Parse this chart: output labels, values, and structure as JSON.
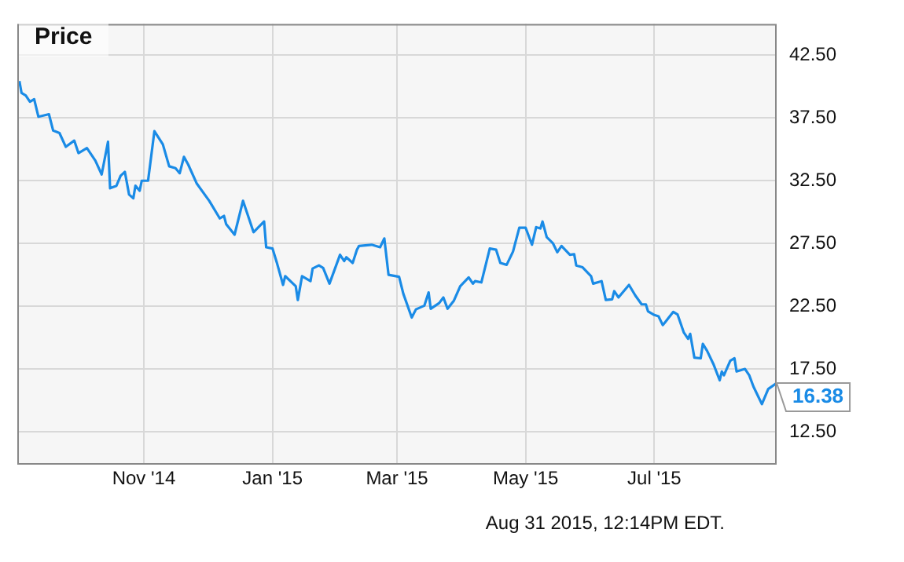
{
  "chart_data": {
    "type": "line",
    "title": "Price",
    "x": [
      "2014-09-03",
      "2014-09-04",
      "2014-09-06",
      "2014-09-08",
      "2014-09-10",
      "2014-09-12",
      "2014-09-17",
      "2014-09-19",
      "2014-09-22",
      "2014-09-25",
      "2014-09-29",
      "2014-10-01",
      "2014-10-05",
      "2014-10-09",
      "2014-10-12",
      "2014-10-15",
      "2014-10-16",
      "2014-10-19",
      "2014-10-21",
      "2014-10-23",
      "2014-10-25",
      "2014-10-27",
      "2014-10-28",
      "2014-10-30",
      "2014-10-31",
      "2014-11-03",
      "2014-11-06",
      "2014-11-10",
      "2014-11-13",
      "2014-11-16",
      "2014-11-18",
      "2014-11-20",
      "2014-11-22",
      "2014-11-26",
      "2014-12-02",
      "2014-12-07",
      "2014-12-09",
      "2014-12-10",
      "2014-12-14",
      "2014-12-18",
      "2014-12-23",
      "2014-12-28",
      "2014-12-29",
      "2015-01-01",
      "2015-01-03",
      "2015-01-06",
      "2015-01-07",
      "2015-01-12",
      "2015-01-13",
      "2015-01-15",
      "2015-01-19",
      "2015-01-20",
      "2015-01-23",
      "2015-01-25",
      "2015-01-28",
      "2015-02-02",
      "2015-02-04",
      "2015-02-05",
      "2015-02-08",
      "2015-02-10",
      "2015-02-11",
      "2015-02-17",
      "2015-02-21",
      "2015-02-23",
      "2015-02-25",
      "2015-03-02",
      "2015-03-04",
      "2015-03-08",
      "2015-03-10",
      "2015-03-14",
      "2015-03-16",
      "2015-03-17",
      "2015-03-21",
      "2015-03-23",
      "2015-03-25",
      "2015-03-28",
      "2015-03-31",
      "2015-04-04",
      "2015-04-06",
      "2015-04-07",
      "2015-04-10",
      "2015-04-14",
      "2015-04-17",
      "2015-04-19",
      "2015-04-22",
      "2015-04-25",
      "2015-04-28",
      "2015-05-01",
      "2015-05-04",
      "2015-05-06",
      "2015-05-08",
      "2015-05-09",
      "2015-05-11",
      "2015-05-14",
      "2015-05-16",
      "2015-05-18",
      "2015-05-22",
      "2015-05-24",
      "2015-05-25",
      "2015-05-28",
      "2015-06-01",
      "2015-06-02",
      "2015-06-06",
      "2015-06-08",
      "2015-06-11",
      "2015-06-12",
      "2015-06-14",
      "2015-06-19",
      "2015-06-22",
      "2015-06-25",
      "2015-06-27",
      "2015-06-28",
      "2015-07-01",
      "2015-07-03",
      "2015-07-05",
      "2015-07-06",
      "2015-07-10",
      "2015-07-12",
      "2015-07-15",
      "2015-07-17",
      "2015-07-18",
      "2015-07-20",
      "2015-07-23",
      "2015-07-24",
      "2015-07-26",
      "2015-07-29",
      "2015-08-01",
      "2015-08-02",
      "2015-08-03",
      "2015-08-06",
      "2015-08-08",
      "2015-08-09",
      "2015-08-13",
      "2015-08-15",
      "2015-08-17",
      "2015-08-21",
      "2015-08-24",
      "2015-08-28"
    ],
    "values": [
      40.44,
      39.5,
      39.3,
      38.8,
      39.0,
      37.6,
      37.8,
      36.5,
      36.3,
      35.2,
      35.7,
      34.7,
      35.1,
      34.1,
      33.0,
      35.6,
      31.9,
      32.1,
      32.9,
      33.2,
      31.4,
      31.1,
      32.1,
      31.7,
      32.5,
      32.5,
      36.45,
      35.4,
      33.65,
      33.5,
      33.1,
      34.4,
      33.8,
      32.3,
      30.9,
      29.5,
      29.7,
      29.05,
      28.2,
      30.9,
      28.4,
      29.25,
      27.2,
      27.1,
      26.0,
      24.2,
      24.9,
      24.1,
      23.0,
      24.9,
      24.5,
      25.5,
      25.75,
      25.55,
      24.3,
      26.6,
      26.1,
      26.4,
      25.95,
      27.0,
      27.3,
      27.4,
      27.2,
      27.9,
      25.0,
      24.85,
      23.5,
      21.6,
      22.25,
      22.55,
      23.6,
      22.3,
      22.75,
      23.2,
      22.3,
      22.95,
      24.1,
      24.8,
      24.3,
      24.5,
      24.4,
      27.1,
      27.0,
      25.95,
      25.8,
      26.85,
      28.75,
      28.75,
      27.4,
      28.8,
      28.7,
      29.25,
      28.0,
      27.5,
      26.8,
      27.3,
      26.6,
      26.65,
      25.75,
      25.6,
      24.9,
      24.3,
      24.5,
      23.0,
      23.05,
      23.7,
      23.2,
      24.2,
      23.35,
      22.65,
      22.65,
      22.1,
      21.8,
      21.7,
      21.0,
      21.2,
      22.05,
      21.85,
      20.4,
      19.9,
      20.3,
      18.4,
      18.35,
      19.5,
      18.95,
      17.9,
      16.6,
      17.3,
      17.0,
      18.15,
      18.35,
      17.3,
      17.5,
      17.0,
      16.1,
      14.7,
      15.9,
      16.38
    ],
    "value_labels": [
      null,
      null,
      null,
      null,
      null,
      null,
      null,
      null,
      null,
      null,
      null,
      null,
      null,
      null,
      null,
      null,
      null,
      null,
      null,
      null,
      null,
      null,
      null,
      null,
      null,
      null,
      null,
      null,
      null,
      null,
      null,
      null,
      null,
      null,
      null,
      null,
      null,
      null,
      null,
      null,
      null,
      null,
      null,
      null,
      null,
      null,
      null,
      null,
      null,
      null,
      null,
      null,
      null,
      null,
      null,
      null,
      null,
      null,
      null,
      null,
      null,
      null,
      null,
      null,
      null,
      null,
      null,
      null,
      null,
      null,
      null,
      null,
      null,
      null,
      null,
      null,
      null,
      null,
      null,
      null,
      null,
      null,
      null,
      null,
      null,
      null,
      null,
      null,
      null,
      null,
      null,
      null,
      null,
      null,
      null,
      null,
      null,
      null,
      null,
      null,
      null,
      null,
      null,
      null,
      null,
      null,
      null,
      null,
      null,
      null,
      null,
      null,
      null,
      null,
      null,
      null,
      null,
      null,
      null,
      null,
      null,
      null,
      null,
      null,
      null,
      null,
      null,
      null,
      null,
      null,
      null,
      null,
      null,
      null,
      null,
      null,
      null,
      "16.38"
    ],
    "color": "#1a8be6",
    "xlim": [
      "2014-09-02",
      "2015-08-28"
    ],
    "xticks": [
      {
        "value": "2014-11-01",
        "label": "Nov '14"
      },
      {
        "value": "2015-01-01",
        "label": "Jan '15"
      },
      {
        "value": "2015-03-01",
        "label": "Mar '15"
      },
      {
        "value": "2015-05-01",
        "label": "May '15"
      },
      {
        "value": "2015-07-01",
        "label": "Jul '15"
      }
    ],
    "ylim": [
      10,
      45
    ],
    "yticks": [
      {
        "value": 12.5,
        "label": "12.50"
      },
      {
        "value": 17.5,
        "label": "17.50"
      },
      {
        "value": 22.5,
        "label": "22.50"
      },
      {
        "value": 27.5,
        "label": "27.50"
      },
      {
        "value": 32.5,
        "label": "32.50"
      },
      {
        "value": 37.5,
        "label": "37.50"
      },
      {
        "value": 42.5,
        "label": "42.50"
      }
    ],
    "grid": true,
    "annotations": [
      "Aug 31 2015, 12:14PM EDT."
    ]
  }
}
